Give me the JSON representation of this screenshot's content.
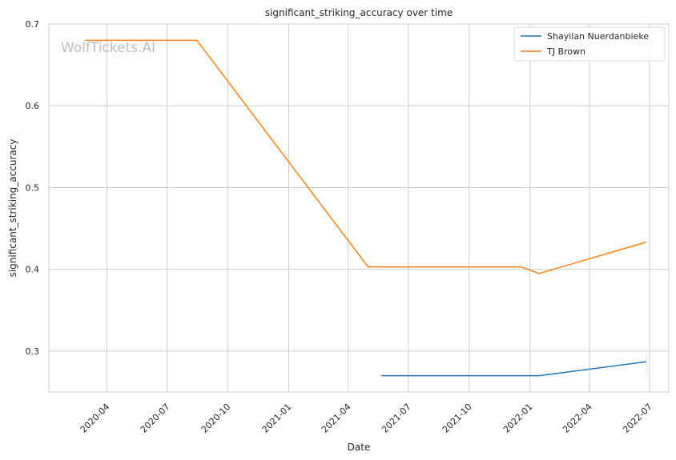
{
  "chart_data": {
    "type": "line",
    "title": "significant_striking_accuracy over time",
    "xlabel": "Date",
    "ylabel": "significant_striking_accuracy",
    "watermark": "WolfTickets.AI",
    "x_ticks": [
      "2020-04",
      "2020-07",
      "2020-10",
      "2021-01",
      "2021-04",
      "2021-07",
      "2021-10",
      "2022-01",
      "2022-04",
      "2022-07"
    ],
    "y_ticks": [
      "0.3",
      "0.4",
      "0.5",
      "0.6",
      "0.7"
    ],
    "xlim": [
      "2020-01-04",
      "2022-07-30"
    ],
    "ylim": [
      0.25,
      0.7
    ],
    "grid": true,
    "legend_position": "top-right",
    "series": [
      {
        "name": "Shayilan Nuerdanbieke",
        "color": "#1f77b4",
        "points": [
          {
            "x": "2021-05-22",
            "y": 0.27
          },
          {
            "x": "2022-01-15",
            "y": 0.27
          },
          {
            "x": "2022-06-25",
            "y": 0.287
          }
        ]
      },
      {
        "name": "TJ Brown",
        "color": "#ff7f0e",
        "points": [
          {
            "x": "2020-02-29",
            "y": 0.68
          },
          {
            "x": "2020-08-15",
            "y": 0.68
          },
          {
            "x": "2021-05-01",
            "y": 0.403
          },
          {
            "x": "2021-12-18",
            "y": 0.403
          },
          {
            "x": "2022-01-15",
            "y": 0.395
          },
          {
            "x": "2022-06-25",
            "y": 0.433
          }
        ]
      }
    ]
  }
}
